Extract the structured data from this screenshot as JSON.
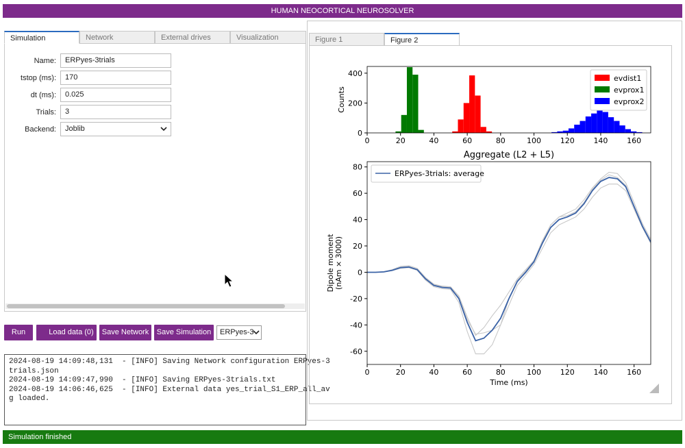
{
  "header": {
    "title": "HUMAN NEOCORTICAL NEUROSOLVER"
  },
  "left_tabs": [
    "Simulation",
    "Network",
    "External drives",
    "Visualization"
  ],
  "form": {
    "fields": [
      {
        "label": "Name:",
        "value": "ERPyes-3trials"
      },
      {
        "label": "tstop (ms):",
        "value": "170"
      },
      {
        "label": "dt (ms):",
        "value": "0.025"
      },
      {
        "label": "Trials:",
        "value": "3"
      },
      {
        "label": "Backend:",
        "value": "Joblib"
      }
    ]
  },
  "buttons": [
    "Run",
    "Load data (0)",
    "Save Network",
    "Save Simulation"
  ],
  "data_select": "ERPyes-3",
  "log": [
    "2024-08-19 14:09:48,131  - [INFO] Saving Network configuration ERPyes-3",
    "trials.json",
    "2024-08-19 14:09:47,990  - [INFO] Saving ERPyes-3trials.txt",
    "2024-08-19 14:06:46,625  - [INFO] External data yes_trial_S1_ERP_all_av",
    "g loaded."
  ],
  "figure_tabs": [
    "Figure 1",
    "Figure 2"
  ],
  "histogram": {
    "type": "histogram",
    "ylabel": "Counts",
    "xlim": [
      0,
      170
    ],
    "ylim": [
      0,
      445
    ],
    "xticks": [
      0,
      20,
      40,
      60,
      80,
      100,
      120,
      140,
      160
    ],
    "yticks": [
      0,
      200,
      400
    ],
    "legend": "upper right",
    "series": [
      {
        "name": "evdist1",
        "color": "#ff0000",
        "bins": [
          51,
          54.4,
          57.8,
          61.2,
          64.6,
          68,
          71.4,
          74.8
        ],
        "counts": [
          10,
          90,
          200,
          385,
          250,
          40,
          10
        ]
      },
      {
        "name": "evprox1",
        "color": "#007a00",
        "bins": [
          17,
          20.4,
          23.8,
          27.2,
          30.6,
          34
        ],
        "counts": [
          10,
          120,
          440,
          390,
          20
        ]
      },
      {
        "name": "evprox2",
        "color": "#0000ff",
        "bins": [
          110.5,
          113.9,
          117.3,
          120.7,
          124.1,
          127.5,
          130.9,
          134.3,
          137.7,
          141.1,
          144.5,
          147.9,
          151.3,
          154.7,
          158.1,
          161.5,
          164.9
        ],
        "counts": [
          5,
          10,
          15,
          30,
          55,
          80,
          110,
          130,
          155,
          140,
          105,
          80,
          50,
          25,
          10,
          5
        ]
      }
    ]
  },
  "line_chart": {
    "type": "line",
    "title": "Aggregate (L2 + L5)",
    "xlabel": "Time (ms)",
    "ylabel": [
      "Dipole moment",
      "(nAm × 3000)"
    ],
    "xlim": [
      0,
      170
    ],
    "ylim": [
      -70,
      84
    ],
    "xticks": [
      0,
      20,
      40,
      60,
      80,
      100,
      120,
      140,
      160
    ],
    "yticks": [
      -60,
      -40,
      -20,
      0,
      20,
      40,
      60,
      80
    ],
    "legend": "upper left",
    "x": [
      0,
      5,
      10,
      15,
      20,
      25,
      30,
      35,
      40,
      45,
      50,
      55,
      60,
      65,
      70,
      75,
      80,
      85,
      90,
      95,
      100,
      105,
      110,
      115,
      120,
      125,
      130,
      135,
      140,
      145,
      150,
      155,
      160,
      165,
      170
    ],
    "series": [
      {
        "color": "#c8c8c8",
        "values": [
          0,
          0,
          0.5,
          2,
          4.5,
          5,
          3,
          -4,
          -9,
          -10.5,
          -11,
          -18,
          -34,
          -48,
          -42,
          -33,
          -25,
          -15,
          -5,
          2,
          9,
          23,
          36,
          42,
          45,
          48,
          55,
          64,
          71,
          76,
          75,
          68,
          53,
          37,
          25
        ]
      },
      {
        "color": "#c8c8c8",
        "values": [
          0,
          0,
          0.2,
          1.2,
          3,
          3.5,
          1.5,
          -6,
          -11,
          -12.5,
          -13,
          -23,
          -45,
          -62,
          -62,
          -55,
          -40,
          -25,
          -10,
          -2,
          6,
          18,
          30,
          36,
          39,
          42,
          48,
          57,
          64,
          67,
          67,
          62,
          48,
          34,
          22
        ]
      },
      {
        "color": "#c8c8c8",
        "values": [
          0,
          0,
          0.3,
          1.6,
          3.8,
          4.3,
          2.2,
          -4.5,
          -9.5,
          -11,
          -11.5,
          -19,
          -36,
          -47,
          -46,
          -44,
          -40,
          -20,
          -6,
          1,
          9,
          24,
          36,
          42,
          43,
          46,
          53,
          63,
          70,
          74,
          72,
          66,
          50,
          35,
          23
        ]
      },
      {
        "name": "ERPyes-3trials: average",
        "color": "#3a62a6",
        "values": [
          0,
          0,
          0.3,
          1.5,
          3.5,
          4,
          2,
          -5,
          -10,
          -11.5,
          -12,
          -20,
          -38,
          -52,
          -50,
          -44,
          -35,
          -20,
          -7,
          0,
          8,
          22,
          34,
          40,
          42,
          45,
          52,
          62,
          69,
          72,
          71,
          65,
          50,
          35,
          23
        ]
      }
    ]
  },
  "status": "Simulation finished"
}
